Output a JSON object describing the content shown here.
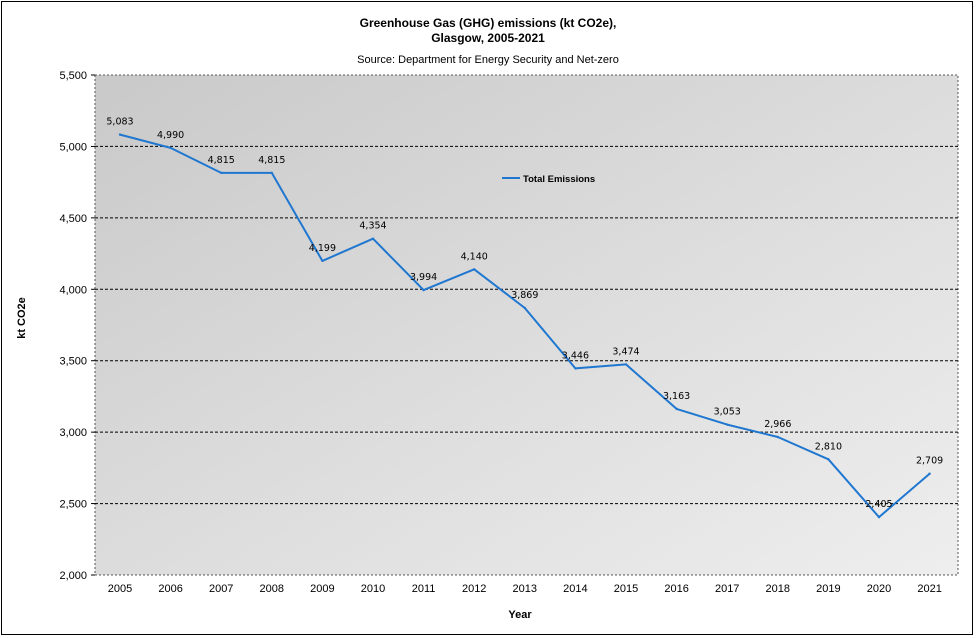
{
  "chart_data": {
    "type": "line",
    "title_line1": "Greenhouse Gas (GHG) emissions (kt CO2e),",
    "title_line2": "Glasgow, 2005-2021",
    "subtitle": "Source: Department for Energy Security and Net-zero",
    "xlabel": "Year",
    "ylabel": "kt CO2e",
    "ylim": [
      2000,
      5500
    ],
    "y_ticks": [
      2000,
      2500,
      3000,
      3500,
      4000,
      4500,
      5000,
      5500
    ],
    "y_tick_labels": [
      "2,000",
      "2,500",
      "3,000",
      "3,500",
      "4,000",
      "4,500",
      "5,000",
      "5,500"
    ],
    "categories": [
      "2005",
      "2006",
      "2007",
      "2008",
      "2009",
      "2010",
      "2011",
      "2012",
      "2013",
      "2014",
      "2015",
      "2016",
      "2017",
      "2018",
      "2019",
      "2020",
      "2021"
    ],
    "series": [
      {
        "name": "Total Emissions",
        "color": "#1f77d0",
        "values": [
          5083,
          4990,
          4815,
          4815,
          4199,
          4354,
          3994,
          4140,
          3869,
          3446,
          3474,
          3163,
          3053,
          2966,
          2810,
          2405,
          2709
        ],
        "value_labels": [
          "5,083",
          "4,990",
          "4,815",
          "4,815",
          "4,199",
          "4,354",
          "3,994",
          "4,140",
          "3,869",
          "3,446",
          "3,474",
          "3,163",
          "3,053",
          "2,966",
          "2,810",
          "2,405",
          "2,709"
        ]
      }
    ],
    "grid": true,
    "plot_background": "#d4d4d4",
    "legend_position": "inside-top-center"
  }
}
